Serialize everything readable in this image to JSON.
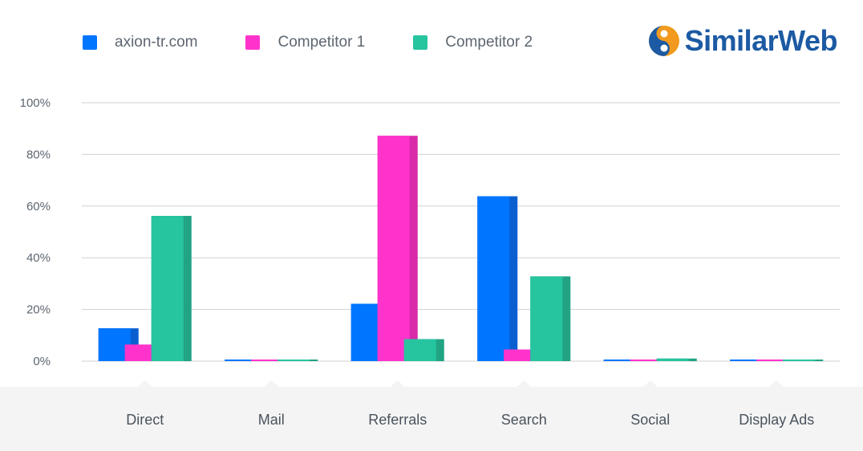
{
  "legend": {
    "items": [
      {
        "label": "axion-tr.com",
        "color": "#0075ff"
      },
      {
        "label": "Competitor 1",
        "color": "#ff33cc"
      },
      {
        "label": "Competitor 2",
        "color": "#27c4a0"
      }
    ]
  },
  "logo": {
    "text": "SimilarWeb"
  },
  "chart_data": {
    "type": "bar",
    "categories": [
      "Direct",
      "Mail",
      "Referrals",
      "Search",
      "Social",
      "Display Ads"
    ],
    "series": [
      {
        "name": "axion-tr.com",
        "values": [
          12.7,
          0.5,
          22.2,
          63.8,
          0.5,
          0.5
        ]
      },
      {
        "name": "Competitor 1",
        "values": [
          6.4,
          0.5,
          87.2,
          4.5,
          0.5,
          0.5
        ]
      },
      {
        "name": "Competitor 2",
        "values": [
          56.2,
          0.5,
          8.5,
          32.8,
          1.0,
          0.6
        ]
      }
    ],
    "ylim": [
      0,
      100
    ],
    "yticks": [
      0,
      20,
      40,
      60,
      80,
      100
    ],
    "ytick_labels": [
      "0%",
      "20%",
      "40%",
      "60%",
      "80%",
      "100%"
    ],
    "grid": true,
    "legend_position": "top-left",
    "colors": {
      "axion-tr.com": {
        "face": "#0075ff",
        "side": "#0a5fd0"
      },
      "Competitor 1": {
        "face": "#ff33cc",
        "side": "#d92aa9"
      },
      "Competitor 2": {
        "face": "#27c4a0",
        "side": "#21a384"
      }
    }
  }
}
